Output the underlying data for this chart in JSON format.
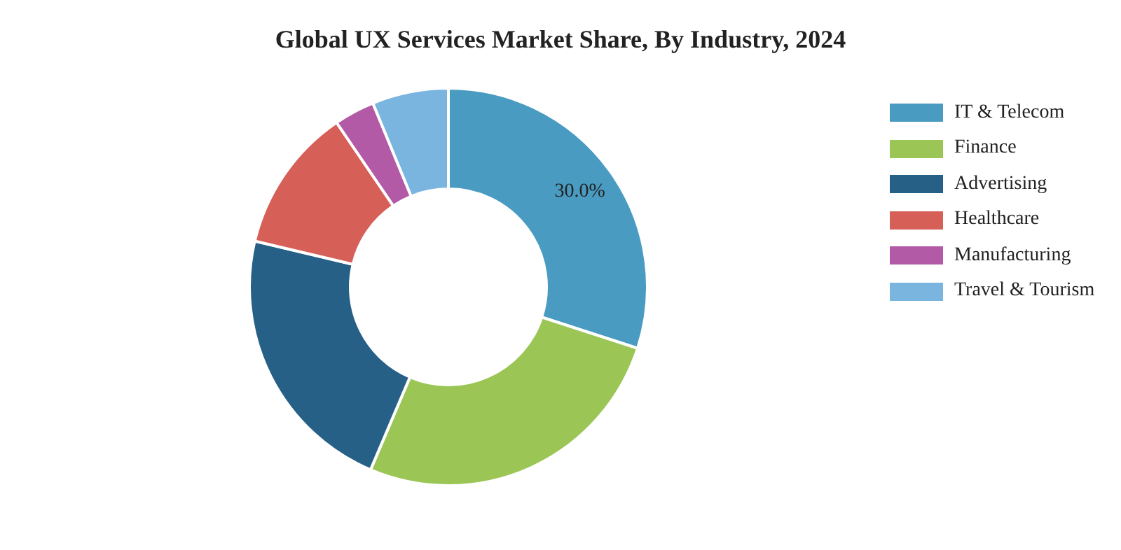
{
  "chart_data": {
    "type": "donut",
    "title": "Global UX Services Market Share, By Industry, 2024",
    "categories": [
      "IT & Telecom",
      "Finance",
      "Advertising",
      "Healthcare",
      "Manufacturing",
      "Travel & Tourism"
    ],
    "values": [
      30.0,
      26.4,
      22.3,
      11.8,
      3.3,
      6.2
    ],
    "colors": [
      "#4a9bc1",
      "#9bc655",
      "#276087",
      "#d65f58",
      "#b35aa6",
      "#7ab5e0"
    ],
    "value_labels": [
      "30.0%",
      null,
      null,
      null,
      null,
      null
    ],
    "legend": "right"
  }
}
